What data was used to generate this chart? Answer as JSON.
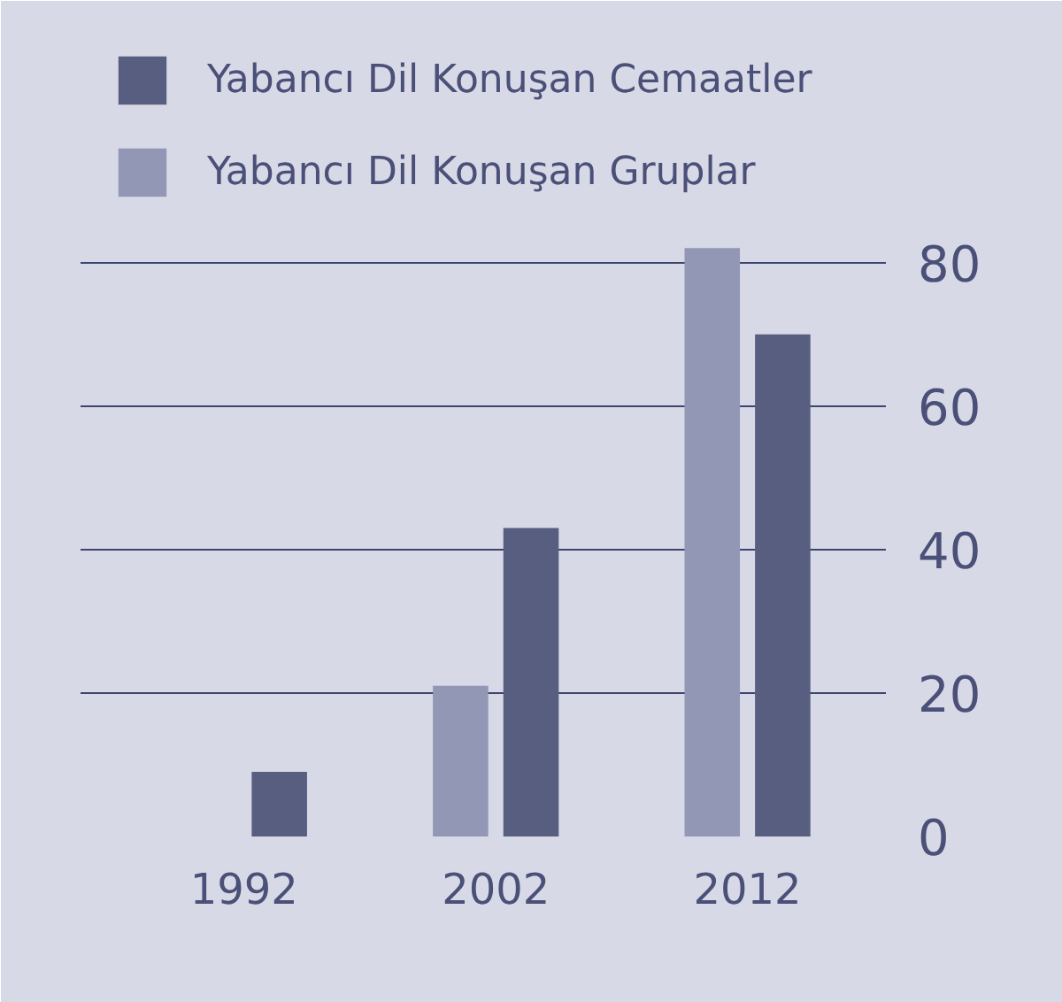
{
  "chart_data": {
    "type": "bar",
    "categories": [
      "1992",
      "2002",
      "2012"
    ],
    "series": [
      {
        "name": "Yabancı Dil Konuşan Cemaatler",
        "color": "#575e80",
        "values": [
          9,
          43,
          70
        ]
      },
      {
        "name": "Yabancı Dil Konuşan Gruplar",
        "color": "#9197b4",
        "values": [
          null,
          21,
          82
        ]
      }
    ],
    "ylim": [
      0,
      114
    ],
    "yticks": [
      0,
      20,
      40,
      60,
      80
    ],
    "grid": "y",
    "legend": "top left"
  }
}
